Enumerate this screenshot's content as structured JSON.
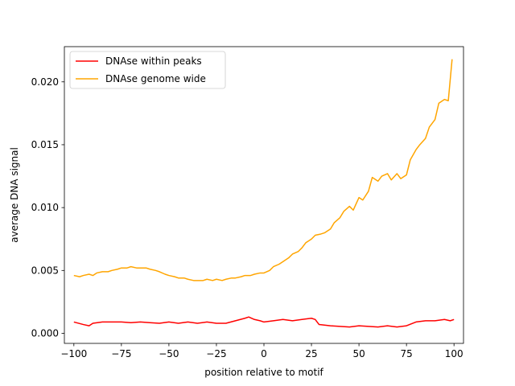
{
  "chart_data": {
    "type": "line",
    "title": "",
    "xlabel": "position relative to motif",
    "ylabel": "average DNA signal",
    "xlim": [
      -105,
      105
    ],
    "ylim": [
      -0.0008,
      0.0228
    ],
    "xticks": [
      -100,
      -75,
      -50,
      -25,
      0,
      25,
      50,
      75,
      100
    ],
    "xtick_labels": [
      "−100",
      "−75",
      "−50",
      "−25",
      "0",
      "25",
      "50",
      "75",
      "100"
    ],
    "yticks": [
      0.0,
      0.005,
      0.01,
      0.015,
      0.02
    ],
    "ytick_labels": [
      "0.000",
      "0.005",
      "0.010",
      "0.015",
      "0.020"
    ],
    "grid": false,
    "legend_position": "top-left",
    "series": [
      {
        "name": "DNAse within peaks",
        "color": "#ff0000",
        "x": [
          -100,
          -95,
          -92,
          -90,
          -85,
          -80,
          -75,
          -70,
          -65,
          -60,
          -55,
          -50,
          -45,
          -40,
          -35,
          -30,
          -25,
          -20,
          -15,
          -10,
          -8,
          -5,
          -2,
          0,
          5,
          10,
          15,
          20,
          25,
          27,
          29,
          35,
          40,
          45,
          50,
          55,
          60,
          65,
          70,
          75,
          80,
          85,
          90,
          95,
          98,
          100
        ],
        "y": [
          0.0009,
          0.0007,
          0.0006,
          0.0008,
          0.0009,
          0.0009,
          0.0009,
          0.00085,
          0.0009,
          0.00085,
          0.0008,
          0.0009,
          0.0008,
          0.0009,
          0.0008,
          0.0009,
          0.0008,
          0.0008,
          0.001,
          0.0012,
          0.0013,
          0.0011,
          0.001,
          0.0009,
          0.001,
          0.0011,
          0.001,
          0.0011,
          0.0012,
          0.0011,
          0.0007,
          0.0006,
          0.00055,
          0.0005,
          0.0006,
          0.00055,
          0.0005,
          0.0006,
          0.0005,
          0.0006,
          0.0009,
          0.001,
          0.001,
          0.0011,
          0.001,
          0.0011
        ]
      },
      {
        "name": "DNAse genome wide",
        "color": "#ffa500",
        "x": [
          -100,
          -97,
          -95,
          -92,
          -90,
          -88,
          -85,
          -82,
          -80,
          -77,
          -75,
          -72,
          -70,
          -67,
          -65,
          -62,
          -60,
          -57,
          -55,
          -52,
          -50,
          -47,
          -45,
          -42,
          -40,
          -37,
          -35,
          -32,
          -30,
          -27,
          -25,
          -22,
          -20,
          -17,
          -15,
          -12,
          -10,
          -7,
          -5,
          -2,
          0,
          3,
          5,
          8,
          10,
          13,
          15,
          18,
          20,
          22,
          25,
          27,
          30,
          32,
          35,
          37,
          40,
          42,
          45,
          47,
          50,
          52,
          55,
          57,
          60,
          62,
          65,
          67,
          70,
          72,
          75,
          77,
          80,
          82,
          85,
          87,
          90,
          92,
          95,
          97,
          99
        ],
        "y": [
          0.0046,
          0.0045,
          0.0046,
          0.0047,
          0.0046,
          0.0048,
          0.0049,
          0.0049,
          0.005,
          0.0051,
          0.0052,
          0.0052,
          0.0053,
          0.0052,
          0.0052,
          0.0052,
          0.0051,
          0.005,
          0.0049,
          0.0047,
          0.0046,
          0.0045,
          0.0044,
          0.0044,
          0.0043,
          0.0042,
          0.0042,
          0.0042,
          0.0043,
          0.0042,
          0.0043,
          0.0042,
          0.0043,
          0.0044,
          0.0044,
          0.0045,
          0.0046,
          0.0046,
          0.0047,
          0.0048,
          0.0048,
          0.005,
          0.0053,
          0.0055,
          0.0057,
          0.006,
          0.0063,
          0.0065,
          0.0068,
          0.0072,
          0.0075,
          0.0078,
          0.0079,
          0.008,
          0.0083,
          0.0088,
          0.0092,
          0.0097,
          0.0101,
          0.0098,
          0.0108,
          0.0106,
          0.0113,
          0.0124,
          0.0121,
          0.0125,
          0.0127,
          0.0122,
          0.0127,
          0.0123,
          0.0126,
          0.0138,
          0.0146,
          0.015,
          0.0155,
          0.0164,
          0.017,
          0.0183,
          0.0186,
          0.0185,
          0.0218
        ]
      }
    ]
  }
}
